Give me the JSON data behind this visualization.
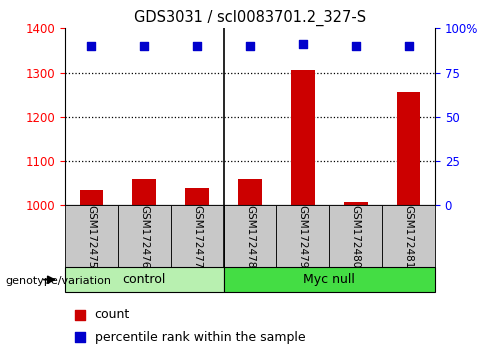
{
  "title": "GDS3031 / scl0083701.2_327-S",
  "samples": [
    "GSM172475",
    "GSM172476",
    "GSM172477",
    "GSM172478",
    "GSM172479",
    "GSM172480",
    "GSM172481"
  ],
  "count_values": [
    1035,
    1060,
    1040,
    1060,
    1305,
    1008,
    1255
  ],
  "percentile_y_values": [
    90,
    90,
    90,
    90,
    91,
    90,
    90
  ],
  "ylim_left": [
    1000,
    1400
  ],
  "ylim_right": [
    0,
    100
  ],
  "yticks_left": [
    1000,
    1100,
    1200,
    1300,
    1400
  ],
  "yticks_right": [
    0,
    25,
    50,
    75,
    100
  ],
  "yticklabels_right": [
    "0",
    "25",
    "50",
    "75",
    "100%"
  ],
  "bar_color": "#cc0000",
  "scatter_color": "#0000cc",
  "bar_width": 0.45,
  "control_color": "#b8f0b0",
  "myc_color": "#44dd44",
  "genotype_label": "genotype/variation",
  "legend_count_label": "count",
  "legend_percentile_label": "percentile rank within the sample",
  "sample_box_color": "#c8c8c8",
  "grid_yticks": [
    1100,
    1200,
    1300
  ]
}
